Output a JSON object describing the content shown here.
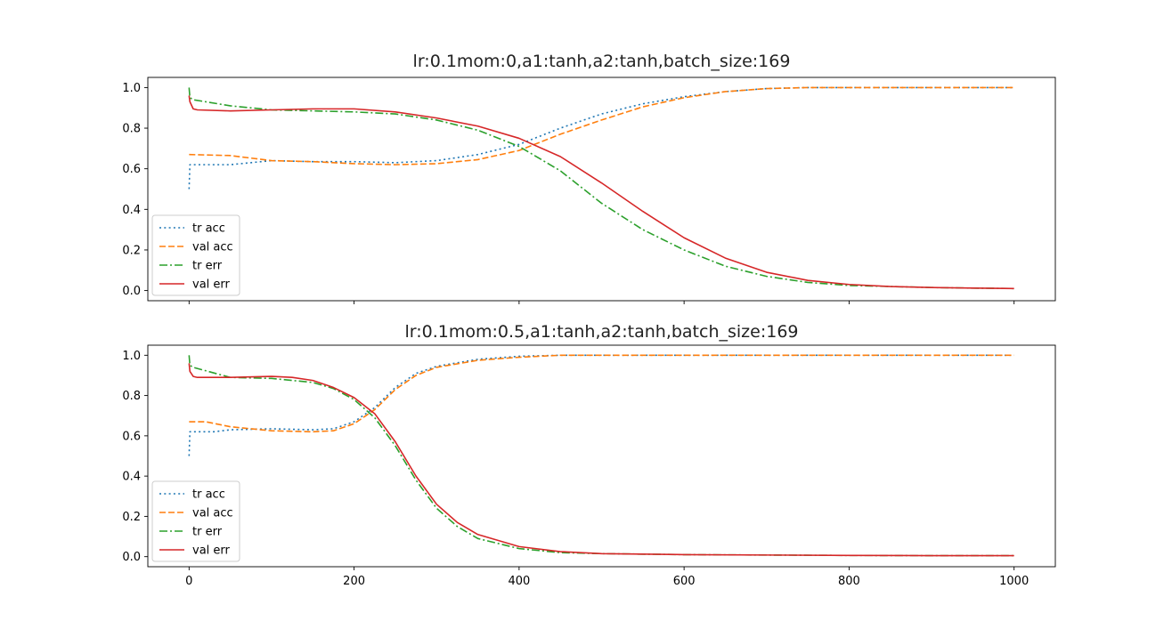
{
  "chart_data": [
    {
      "type": "line",
      "title": "lr:0.1mom:0,a1:tanh,a2:tanh,batch_size:169",
      "xlabel": "",
      "ylabel": "",
      "xlim": [
        -50,
        1050
      ],
      "ylim": [
        -0.05,
        1.05
      ],
      "xticks": [
        0,
        200,
        400,
        600,
        800,
        1000
      ],
      "xtick_labels_visible": false,
      "yticks": [
        0.0,
        0.2,
        0.4,
        0.6,
        0.8,
        1.0
      ],
      "ytick_labels": [
        "0.0",
        "0.2",
        "0.4",
        "0.6",
        "0.8",
        "1.0"
      ],
      "grid": false,
      "legend": "lower-left",
      "series": [
        {
          "name": "tr acc",
          "color": "#1f77b4",
          "style": "dotted",
          "x": [
            0,
            1,
            5,
            10,
            50,
            100,
            150,
            200,
            250,
            300,
            350,
            400,
            450,
            500,
            550,
            600,
            650,
            700,
            750,
            800,
            850,
            900,
            950,
            1000
          ],
          "y": [
            0.5,
            0.62,
            0.62,
            0.62,
            0.62,
            0.64,
            0.635,
            0.635,
            0.63,
            0.64,
            0.67,
            0.72,
            0.8,
            0.87,
            0.92,
            0.955,
            0.98,
            0.995,
            1.0,
            1.0,
            1.0,
            1.0,
            1.0,
            1.0
          ]
        },
        {
          "name": "val acc",
          "color": "#ff7f0e",
          "style": "dashed",
          "x": [
            0,
            50,
            100,
            150,
            200,
            250,
            300,
            350,
            400,
            450,
            500,
            550,
            600,
            650,
            700,
            750,
            800,
            850,
            900,
            950,
            1000
          ],
          "y": [
            0.67,
            0.665,
            0.64,
            0.635,
            0.625,
            0.62,
            0.625,
            0.645,
            0.69,
            0.77,
            0.84,
            0.905,
            0.95,
            0.98,
            0.995,
            1.0,
            1.0,
            1.0,
            1.0,
            1.0,
            1.0
          ]
        },
        {
          "name": "tr err",
          "color": "#2ca02c",
          "style": "dashdot",
          "x": [
            0,
            1,
            5,
            50,
            100,
            150,
            200,
            250,
            300,
            350,
            400,
            450,
            500,
            550,
            600,
            650,
            700,
            750,
            800,
            850,
            900,
            950,
            1000
          ],
          "y": [
            1.0,
            0.95,
            0.94,
            0.91,
            0.89,
            0.885,
            0.88,
            0.87,
            0.84,
            0.79,
            0.71,
            0.59,
            0.43,
            0.3,
            0.2,
            0.12,
            0.07,
            0.04,
            0.025,
            0.02,
            0.015,
            0.012,
            0.01
          ]
        },
        {
          "name": "val err",
          "color": "#d62728",
          "style": "solid",
          "x": [
            0,
            1,
            5,
            10,
            50,
            100,
            150,
            200,
            250,
            300,
            350,
            400,
            450,
            500,
            550,
            600,
            650,
            700,
            750,
            800,
            850,
            900,
            950,
            1000
          ],
          "y": [
            0.96,
            0.93,
            0.895,
            0.89,
            0.885,
            0.89,
            0.895,
            0.895,
            0.88,
            0.85,
            0.81,
            0.75,
            0.66,
            0.53,
            0.39,
            0.26,
            0.16,
            0.09,
            0.05,
            0.03,
            0.02,
            0.015,
            0.012,
            0.01
          ]
        }
      ]
    },
    {
      "type": "line",
      "title": "lr:0.1mom:0.5,a1:tanh,a2:tanh,batch_size:169",
      "xlabel": "",
      "ylabel": "",
      "xlim": [
        -50,
        1050
      ],
      "ylim": [
        -0.05,
        1.05
      ],
      "xticks": [
        0,
        200,
        400,
        600,
        800,
        1000
      ],
      "xtick_labels": [
        "0",
        "200",
        "400",
        "600",
        "800",
        "1000"
      ],
      "xtick_labels_visible": true,
      "yticks": [
        0.0,
        0.2,
        0.4,
        0.6,
        0.8,
        1.0
      ],
      "ytick_labels": [
        "0.0",
        "0.2",
        "0.4",
        "0.6",
        "0.8",
        "1.0"
      ],
      "grid": false,
      "legend": "lower-left",
      "series": [
        {
          "name": "tr acc",
          "color": "#1f77b4",
          "style": "dotted",
          "x": [
            0,
            1,
            5,
            10,
            30,
            50,
            100,
            150,
            175,
            200,
            225,
            250,
            275,
            300,
            350,
            400,
            450,
            500,
            600,
            700,
            800,
            900,
            1000
          ],
          "y": [
            0.5,
            0.62,
            0.62,
            0.62,
            0.62,
            0.63,
            0.635,
            0.63,
            0.635,
            0.67,
            0.74,
            0.84,
            0.91,
            0.945,
            0.98,
            0.995,
            1.0,
            1.0,
            1.0,
            1.0,
            1.0,
            1.0,
            1.0
          ]
        },
        {
          "name": "val acc",
          "color": "#ff7f0e",
          "style": "dashed",
          "x": [
            0,
            20,
            50,
            100,
            150,
            175,
            200,
            225,
            250,
            275,
            300,
            350,
            400,
            450,
            500,
            600,
            700,
            800,
            900,
            1000
          ],
          "y": [
            0.67,
            0.67,
            0.645,
            0.625,
            0.62,
            0.625,
            0.66,
            0.73,
            0.83,
            0.9,
            0.94,
            0.975,
            0.99,
            1.0,
            1.0,
            1.0,
            1.0,
            1.0,
            1.0,
            1.0
          ]
        },
        {
          "name": "tr err",
          "color": "#2ca02c",
          "style": "dashdot",
          "x": [
            0,
            1,
            5,
            50,
            100,
            150,
            175,
            200,
            225,
            250,
            275,
            300,
            325,
            350,
            400,
            450,
            500,
            600,
            700,
            800,
            900,
            1000
          ],
          "y": [
            1.0,
            0.95,
            0.94,
            0.89,
            0.885,
            0.865,
            0.835,
            0.78,
            0.69,
            0.55,
            0.38,
            0.24,
            0.15,
            0.09,
            0.04,
            0.02,
            0.015,
            0.01,
            0.008,
            0.006,
            0.005,
            0.005
          ]
        },
        {
          "name": "val err",
          "color": "#d62728",
          "style": "solid",
          "x": [
            0,
            1,
            5,
            10,
            50,
            100,
            125,
            150,
            175,
            200,
            225,
            250,
            275,
            300,
            325,
            350,
            400,
            450,
            500,
            600,
            700,
            800,
            900,
            1000
          ],
          "y": [
            0.96,
            0.92,
            0.895,
            0.89,
            0.89,
            0.895,
            0.89,
            0.875,
            0.84,
            0.79,
            0.71,
            0.57,
            0.4,
            0.26,
            0.17,
            0.11,
            0.05,
            0.025,
            0.015,
            0.01,
            0.008,
            0.006,
            0.005,
            0.005
          ]
        }
      ]
    }
  ]
}
